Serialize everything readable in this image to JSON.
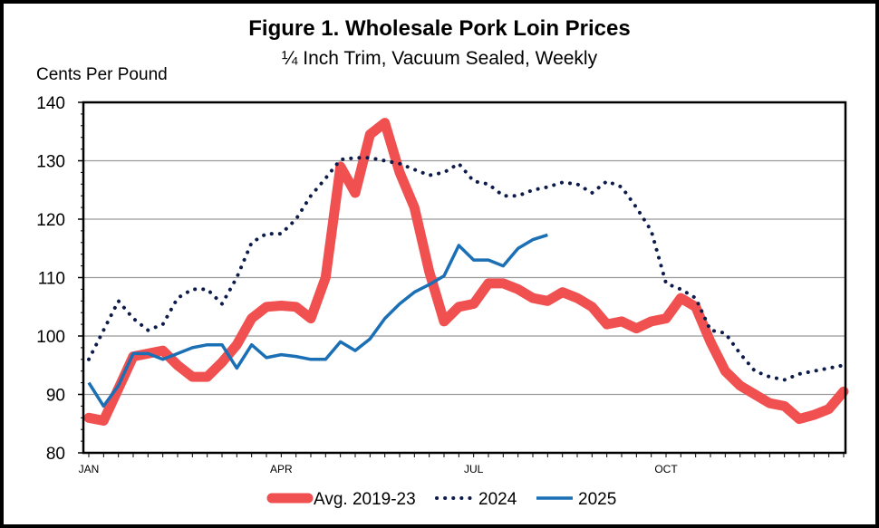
{
  "chart_data": {
    "type": "line",
    "title": "Figure 1. Wholesale Pork Loin Prices",
    "subtitle": "¼ Inch Trim, Vacuum Sealed, Weekly",
    "ylabel": "Cents Per Pound",
    "xlabel": "",
    "ylim": [
      80,
      140
    ],
    "yticks": [
      80,
      90,
      100,
      110,
      120,
      130,
      140
    ],
    "x_tick_labels": [
      {
        "label": "JAN",
        "week": 1
      },
      {
        "label": "APR",
        "week": 14
      },
      {
        "label": "JUL",
        "week": 27
      },
      {
        "label": "OCT",
        "week": 40
      }
    ],
    "weeks": 52,
    "grid": true,
    "legend": "bottom",
    "series": [
      {
        "name": "Avg. 2019-23",
        "color": "#f05050",
        "style": "thick",
        "values": [
          86,
          85.5,
          91,
          96.5,
          97,
          97.5,
          95,
          93,
          93,
          95.5,
          98.5,
          103,
          105,
          105.2,
          105,
          103,
          110,
          129,
          124.5,
          134.5,
          136.5,
          128,
          122,
          111,
          102.5,
          105,
          105.5,
          109,
          109,
          108,
          106.5,
          106,
          107.5,
          106.5,
          105,
          102,
          102.5,
          101.3,
          102.5,
          103,
          106.5,
          105,
          99,
          94,
          91.5,
          90,
          88.5,
          88,
          85.8,
          86.5,
          87.5,
          90.5
        ]
      },
      {
        "name": "2024",
        "color": "#0d1b4a",
        "style": "dotted",
        "values": [
          96,
          101,
          106,
          103,
          101,
          102,
          106.5,
          108,
          108,
          105.5,
          110,
          116,
          117.5,
          117.5,
          120,
          124,
          127,
          130.2,
          130.5,
          130.5,
          130,
          129.5,
          128.5,
          127.5,
          128,
          129.5,
          126.5,
          126,
          124,
          124,
          125,
          125.5,
          126.3,
          126,
          124.5,
          126.5,
          125.5,
          122,
          118,
          109,
          108,
          106.5,
          101,
          100.5,
          97,
          94,
          93,
          92.5,
          93.5,
          94,
          94.5,
          95
        ]
      },
      {
        "name": "2025",
        "color": "#1a6fb5",
        "style": "solid",
        "values": [
          92,
          88,
          91.5,
          97,
          97,
          96,
          97,
          98,
          98.5,
          98.5,
          94.5,
          98.5,
          96.3,
          96.8,
          96.5,
          96,
          96,
          99,
          97.5,
          99.5,
          103,
          105.5,
          107.5,
          108.8,
          110.3,
          115.5,
          113,
          113,
          112,
          115,
          116.5,
          117.3
        ]
      }
    ]
  }
}
